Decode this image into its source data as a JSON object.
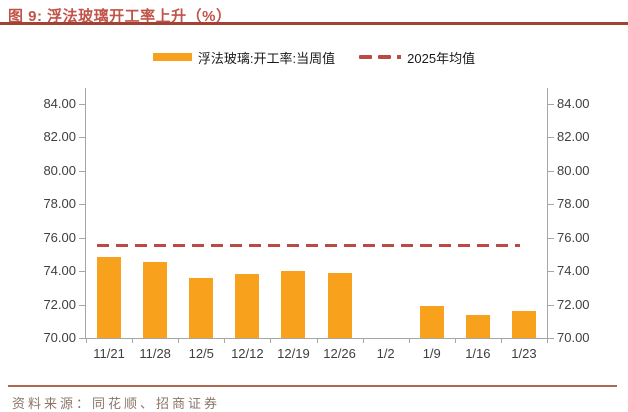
{
  "header": {
    "title": "图 9: 浮法玻璃开工率上升（%）"
  },
  "legend": {
    "bar_label": "浮法玻璃:开工率:当周值",
    "line_label": "2025年均值"
  },
  "chart_data": {
    "type": "bar",
    "title": "浮法玻璃开工率上升（%）",
    "categories": [
      "11/21",
      "11/28",
      "12/5",
      "12/12",
      "12/19",
      "12/26",
      "1/2",
      "1/9",
      "1/16",
      "1/23"
    ],
    "series": [
      {
        "name": "浮法玻璃:开工率:当周值",
        "type": "bar",
        "color": "#F7A11D",
        "values": [
          74.85,
          74.52,
          73.6,
          73.83,
          74.0,
          73.9,
          null,
          71.9,
          71.35,
          71.6
        ]
      },
      {
        "name": "2025年均值",
        "type": "dashed_mean_line",
        "color": "#B94A44",
        "value": 75.55
      }
    ],
    "ylim": [
      70,
      84
    ],
    "ytick_step": 2,
    "ytick_labels": [
      "70.00",
      "72.00",
      "74.00",
      "76.00",
      "78.00",
      "80.00",
      "82.00",
      "84.00"
    ],
    "dual_axis": true,
    "grid": false,
    "legend_position": "top",
    "missing_categories": [
      "1/2"
    ]
  },
  "footer": {
    "source": "资料来源：同花顺、招商证券"
  },
  "colors": {
    "bar": "#F7A11D",
    "mean_line": "#B94A44",
    "title_text": "#C05449",
    "top_rule": "#A04334",
    "bottom_rule": "#AD6A50",
    "source_text": "#8C7467",
    "axis": "#A6A6A6",
    "tick_text": "#3F3F3F"
  }
}
